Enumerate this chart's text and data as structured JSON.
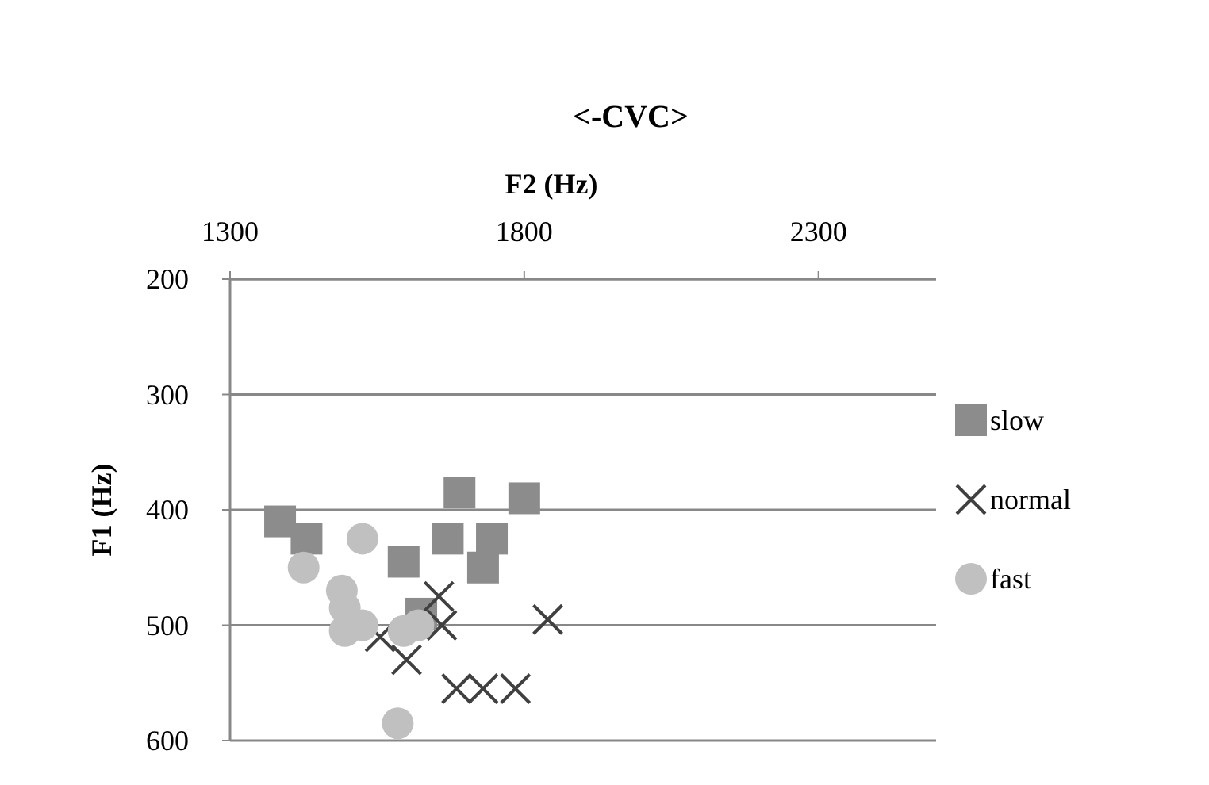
{
  "chart_data": {
    "type": "scatter",
    "title": "<-CVC>",
    "xlabel": "F2 (Hz)",
    "ylabel": "F1 (Hz)",
    "xlim": [
      1300,
      2500
    ],
    "xticks": [
      1300,
      1800,
      2300
    ],
    "ylim": [
      600,
      200
    ],
    "yticks": [
      200,
      300,
      400,
      500,
      600
    ],
    "grid": "y",
    "legend": "right",
    "series": [
      {
        "name": "slow",
        "color": "#8c8c8c",
        "marker": "square",
        "x": [
          1385,
          1430,
          1595,
          1690,
          1670,
          1745,
          1800,
          1730,
          1625
        ],
        "values": [
          410,
          425,
          445,
          385,
          425,
          425,
          390,
          450,
          490
        ]
      },
      {
        "name": "normal",
        "color": "#404040",
        "marker": "cross",
        "x": [
          1655,
          1660,
          1555,
          1600,
          1685,
          1730,
          1785,
          1840
        ],
        "values": [
          475,
          500,
          510,
          530,
          555,
          555,
          555,
          495
        ]
      },
      {
        "name": "fast",
        "color": "#c0c0c0",
        "marker": "circle",
        "x": [
          1525,
          1425,
          1490,
          1495,
          1495,
          1525,
          1595,
          1620,
          1585
        ],
        "values": [
          425,
          450,
          470,
          485,
          505,
          500,
          505,
          500,
          585
        ]
      }
    ]
  }
}
